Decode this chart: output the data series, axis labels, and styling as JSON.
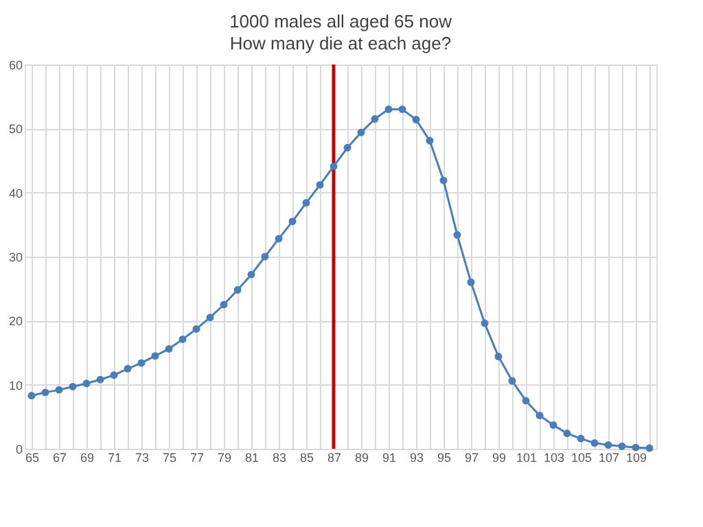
{
  "chart_data": {
    "type": "line",
    "title": "1000 males all aged 65 now",
    "subtitle": "How many die at each age?",
    "categories": [
      "65",
      null,
      "67",
      null,
      "69",
      null,
      "71",
      null,
      "73",
      null,
      "75",
      null,
      "77",
      null,
      "79",
      null,
      "81",
      null,
      "83",
      null,
      "85",
      null,
      "87",
      null,
      "89",
      null,
      "91",
      null,
      "93",
      null,
      "95",
      null,
      "97",
      null,
      "99",
      null,
      "101",
      null,
      "103",
      null,
      "105",
      null,
      "107",
      null,
      "109",
      null
    ],
    "series": [
      {
        "color": "#4a7ebb",
        "values": [
          8.3,
          8.8,
          9.2,
          9.7,
          10.2,
          10.8,
          11.5,
          12.5,
          13.4,
          14.5,
          15.6,
          17.1,
          18.7,
          20.5,
          22.5,
          24.8,
          27.2,
          30.0,
          32.8,
          35.5,
          38.4,
          41.2,
          44.1,
          47.0,
          49.4,
          51.5,
          53.0,
          53.0,
          51.4,
          48.1,
          41.9,
          33.4,
          26.0,
          19.6,
          14.4,
          10.6,
          7.5,
          5.2,
          3.7,
          2.4,
          1.6,
          0.9,
          0.6,
          0.4,
          0.2,
          0.1
        ]
      }
    ],
    "ylim": [
      0,
      60
    ],
    "yticks": [
      0,
      10,
      20,
      30,
      40,
      50,
      60
    ],
    "ref_lines": [
      {
        "axis": "x",
        "value": "87",
        "color": "#c00000"
      }
    ],
    "grid": true,
    "marker": "circle",
    "line_style": "solid"
  }
}
